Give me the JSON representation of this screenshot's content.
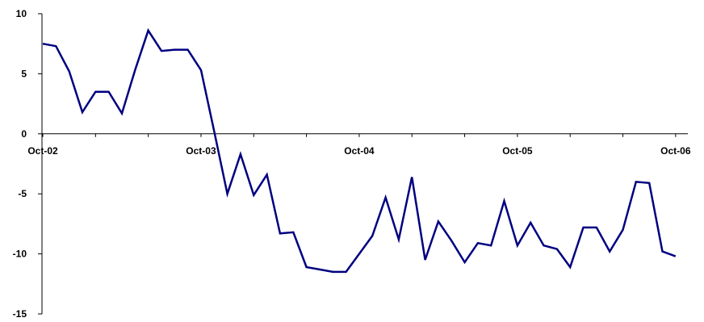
{
  "chart_data": {
    "type": "line",
    "title": "",
    "xlabel": "",
    "ylabel": "",
    "ylim": [
      -15,
      10
    ],
    "yticks": [
      10,
      5,
      0,
      -5,
      -10,
      -15
    ],
    "x_tick_labels": [
      "Oct-02",
      "Oct-03",
      "Oct-04",
      "Oct-05",
      "Oct-06"
    ],
    "x_tick_positions_month_index": [
      0,
      12,
      24,
      36,
      48
    ],
    "x_unit": "months starting Oct-02",
    "grid": false,
    "legend": "none",
    "line_color": "#000080",
    "series": [
      {
        "values": [
          7.5,
          7.3,
          5.2,
          1.8,
          3.5,
          3.5,
          1.7,
          5.3,
          8.6,
          6.9,
          7.0,
          7.0,
          5.3,
          0.2,
          -5.0,
          -1.7,
          -5.1,
          -3.4,
          -8.3,
          -8.2,
          -11.1,
          -11.3,
          -11.5,
          -11.5,
          -10.0,
          -8.5,
          -5.3,
          -8.8,
          -3.6,
          -10.5,
          -7.3,
          -8.9,
          -10.7,
          -9.1,
          -9.3,
          -5.6,
          -9.3,
          -7.4,
          -9.3,
          -9.6,
          -11.1,
          -7.8,
          -7.8,
          -9.8,
          -8.0,
          -4.0,
          -4.1,
          -9.8,
          -10.2
        ]
      }
    ]
  }
}
